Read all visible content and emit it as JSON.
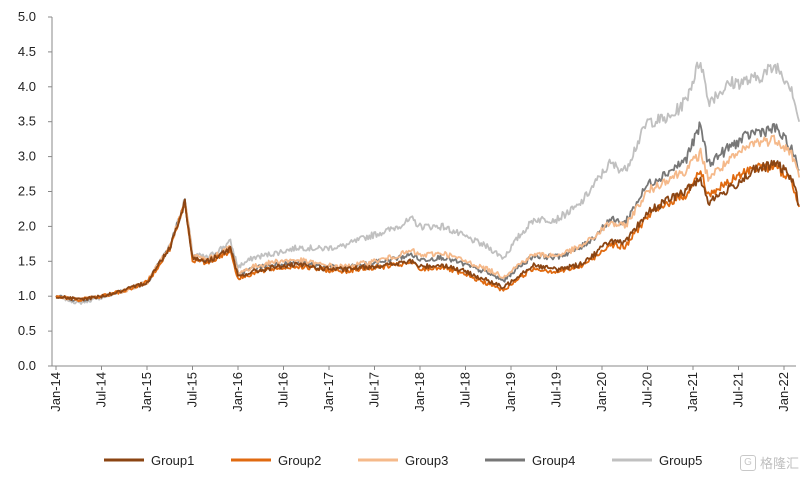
{
  "chart_data": {
    "type": "line",
    "title": "",
    "xlabel": "",
    "ylabel": "",
    "ylim": [
      0,
      5
    ],
    "yticks": [
      "0.0",
      "0.5",
      "1.0",
      "1.5",
      "2.0",
      "2.5",
      "3.0",
      "3.5",
      "4.0",
      "4.5",
      "5.0"
    ],
    "xticks": [
      "Jan-14",
      "Jul-14",
      "Jan-15",
      "Jul-15",
      "Jan-16",
      "Jul-16",
      "Jan-17",
      "Jul-17",
      "Jan-18",
      "Jul-18",
      "Jan-19",
      "Jul-19",
      "Jan-20",
      "Jul-20",
      "Jan-21",
      "Jul-21",
      "Jan-22"
    ],
    "grid": false,
    "legend_position": "bottom",
    "x": [
      "2014-01",
      "2014-04",
      "2014-07",
      "2014-10",
      "2015-01",
      "2015-04",
      "2015-06",
      "2015-07",
      "2015-09",
      "2015-12",
      "2016-01",
      "2016-03",
      "2016-06",
      "2016-09",
      "2016-12",
      "2017-03",
      "2017-06",
      "2017-09",
      "2017-12",
      "2018-01",
      "2018-04",
      "2018-07",
      "2018-10",
      "2018-12",
      "2019-02",
      "2019-04",
      "2019-07",
      "2019-10",
      "2019-12",
      "2020-02",
      "2020-04",
      "2020-07",
      "2020-10",
      "2020-12",
      "2021-02",
      "2021-03",
      "2021-06",
      "2021-09",
      "2021-12",
      "2022-02",
      "2022-03"
    ],
    "series": [
      {
        "name": "Group1",
        "color": "#8B4513",
        "values": [
          1.0,
          0.95,
          1.0,
          1.08,
          1.2,
          1.7,
          2.35,
          1.55,
          1.5,
          1.68,
          1.28,
          1.35,
          1.42,
          1.45,
          1.4,
          1.38,
          1.42,
          1.45,
          1.5,
          1.42,
          1.45,
          1.35,
          1.22,
          1.12,
          1.3,
          1.45,
          1.38,
          1.45,
          1.6,
          1.8,
          1.75,
          2.2,
          2.4,
          2.5,
          2.7,
          2.35,
          2.55,
          2.8,
          2.9,
          2.7,
          2.3
        ]
      },
      {
        "name": "Group2",
        "color": "#E06A10",
        "values": [
          1.0,
          0.95,
          1.0,
          1.08,
          1.2,
          1.68,
          2.33,
          1.52,
          1.48,
          1.65,
          1.25,
          1.33,
          1.4,
          1.43,
          1.38,
          1.36,
          1.4,
          1.43,
          1.48,
          1.38,
          1.42,
          1.3,
          1.18,
          1.08,
          1.26,
          1.4,
          1.35,
          1.42,
          1.55,
          1.75,
          1.7,
          2.15,
          2.35,
          2.45,
          2.8,
          2.45,
          2.65,
          2.85,
          2.85,
          2.65,
          2.28
        ]
      },
      {
        "name": "Group3",
        "color": "#F5B98A",
        "values": [
          1.0,
          0.95,
          1.0,
          1.08,
          1.2,
          1.7,
          2.36,
          1.58,
          1.52,
          1.7,
          1.33,
          1.42,
          1.5,
          1.52,
          1.45,
          1.42,
          1.48,
          1.55,
          1.65,
          1.58,
          1.62,
          1.5,
          1.38,
          1.28,
          1.45,
          1.6,
          1.58,
          1.7,
          1.85,
          2.05,
          2.0,
          2.5,
          2.7,
          2.8,
          3.05,
          2.7,
          2.95,
          3.2,
          3.25,
          3.05,
          2.7
        ]
      },
      {
        "name": "Group4",
        "color": "#777777",
        "values": [
          1.0,
          0.94,
          1.0,
          1.08,
          1.2,
          1.7,
          2.36,
          1.56,
          1.5,
          1.7,
          1.32,
          1.4,
          1.46,
          1.48,
          1.43,
          1.4,
          1.46,
          1.52,
          1.6,
          1.52,
          1.56,
          1.45,
          1.33,
          1.22,
          1.42,
          1.58,
          1.56,
          1.68,
          1.85,
          2.1,
          2.05,
          2.6,
          2.8,
          2.95,
          3.45,
          2.9,
          3.15,
          3.35,
          3.4,
          3.1,
          2.8
        ]
      },
      {
        "name": "Group5",
        "color": "#C0C0C0",
        "values": [
          1.0,
          0.9,
          0.98,
          1.08,
          1.2,
          1.72,
          2.38,
          1.6,
          1.55,
          1.78,
          1.42,
          1.55,
          1.62,
          1.7,
          1.68,
          1.72,
          1.85,
          1.95,
          2.1,
          2.0,
          2.0,
          1.85,
          1.7,
          1.55,
          1.85,
          2.1,
          2.1,
          2.3,
          2.6,
          2.9,
          2.8,
          3.5,
          3.55,
          3.8,
          4.4,
          3.8,
          4.05,
          4.1,
          4.3,
          4.0,
          3.5
        ]
      }
    ]
  },
  "watermark": {
    "glyph": "G",
    "text": "格隆汇"
  }
}
